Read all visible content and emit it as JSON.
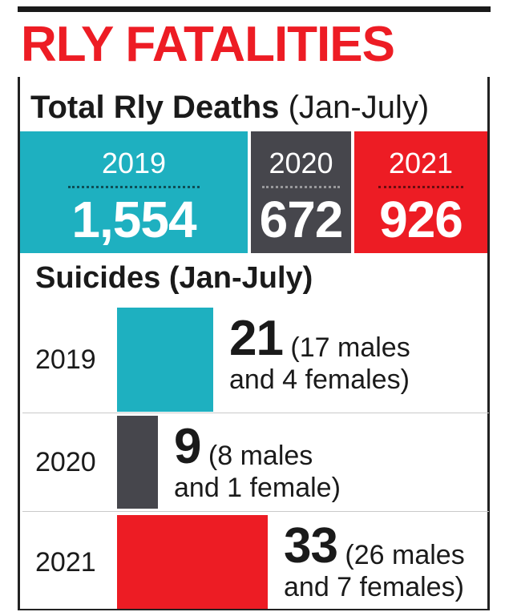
{
  "headline": "RLY FATALITIES",
  "total": {
    "title": "Total Rly Deaths",
    "period": "(Jan-July)"
  },
  "suicides": {
    "title": "Suicides (Jan-July)"
  },
  "colors": {
    "y2019": "#1eb0c0",
    "y2020": "#46464c",
    "y2021": "#ed1c24",
    "headline": "#ed1c24"
  },
  "chart_data": [
    {
      "type": "table",
      "title": "Total Rly Deaths",
      "subtitle": "(Jan-July)",
      "categories": [
        "2019",
        "2020",
        "2021"
      ],
      "values": [
        1554,
        672,
        926
      ],
      "labels": [
        "1,554",
        "672",
        "926"
      ]
    },
    {
      "type": "bar",
      "title": "Suicides (Jan-July)",
      "categories": [
        "2019",
        "2020",
        "2021"
      ],
      "values": [
        21,
        9,
        33
      ],
      "details": [
        [
          "(17 males",
          "and 4 females)"
        ],
        [
          "(8 males",
          "and 1 female)"
        ],
        [
          "(26 males",
          "and 7 females)"
        ]
      ],
      "xlim": [
        0,
        33
      ]
    }
  ]
}
